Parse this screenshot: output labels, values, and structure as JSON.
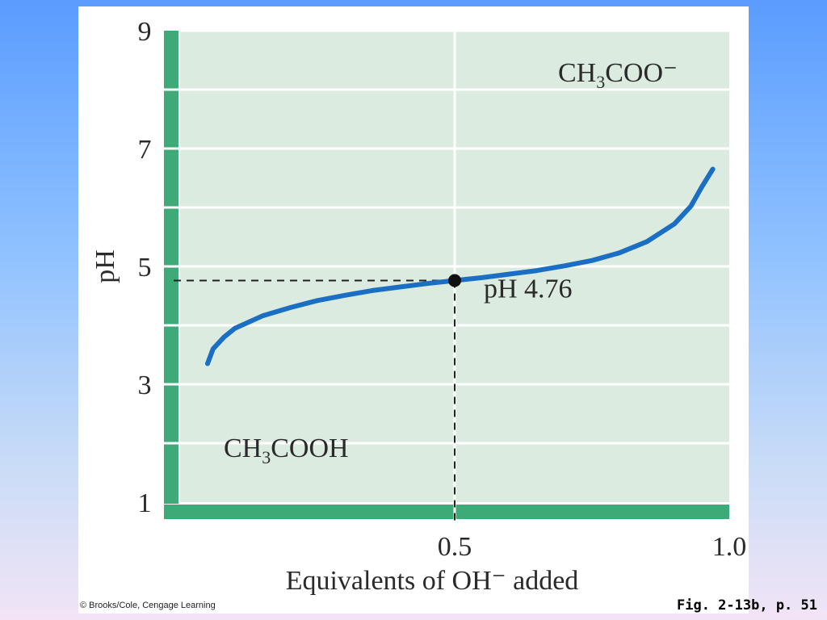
{
  "chart_data": {
    "type": "line",
    "xlabel": "Equivalents of OH⁻ added",
    "ylabel": "pH",
    "xlim": [
      0,
      1.0
    ],
    "ylim": [
      1,
      9
    ],
    "x_ticks": [
      "0.5",
      "1.0"
    ],
    "y_ticks": [
      "1",
      "3",
      "5",
      "7",
      "9"
    ],
    "grid": true,
    "series": [
      {
        "color": "#1a6fc4",
        "points": [
          [
            0.05,
            3.35
          ],
          [
            0.06,
            3.6
          ],
          [
            0.08,
            3.8
          ],
          [
            0.1,
            3.95
          ],
          [
            0.15,
            4.16
          ],
          [
            0.2,
            4.3
          ],
          [
            0.25,
            4.42
          ],
          [
            0.3,
            4.51
          ],
          [
            0.35,
            4.59
          ],
          [
            0.4,
            4.65
          ],
          [
            0.45,
            4.71
          ],
          [
            0.5,
            4.76
          ],
          [
            0.55,
            4.81
          ],
          [
            0.6,
            4.87
          ],
          [
            0.65,
            4.93
          ],
          [
            0.7,
            5.01
          ],
          [
            0.75,
            5.1
          ],
          [
            0.8,
            5.23
          ],
          [
            0.85,
            5.42
          ],
          [
            0.9,
            5.72
          ],
          [
            0.93,
            6.02
          ],
          [
            0.95,
            6.35
          ],
          [
            0.97,
            6.65
          ]
        ]
      }
    ],
    "marker": {
      "x": 0.5,
      "y": 4.76
    },
    "annotations": {
      "midpoint_label": "pH 4.76",
      "acid_species": {
        "main": "CH",
        "sub": "3",
        "rest": "COOH"
      },
      "base_species": {
        "main": "CH",
        "sub": "3",
        "rest": "COO⁻"
      }
    }
  },
  "credit": "© Brooks/Cole, Cengage Learning",
  "figure_label": "Fig. 2-13b, p. 51",
  "colors": {
    "plot_background": "#dcebdf",
    "axis_bar": "#3daa78",
    "curve": "#1a6fc4",
    "grid": "#ffffff"
  }
}
